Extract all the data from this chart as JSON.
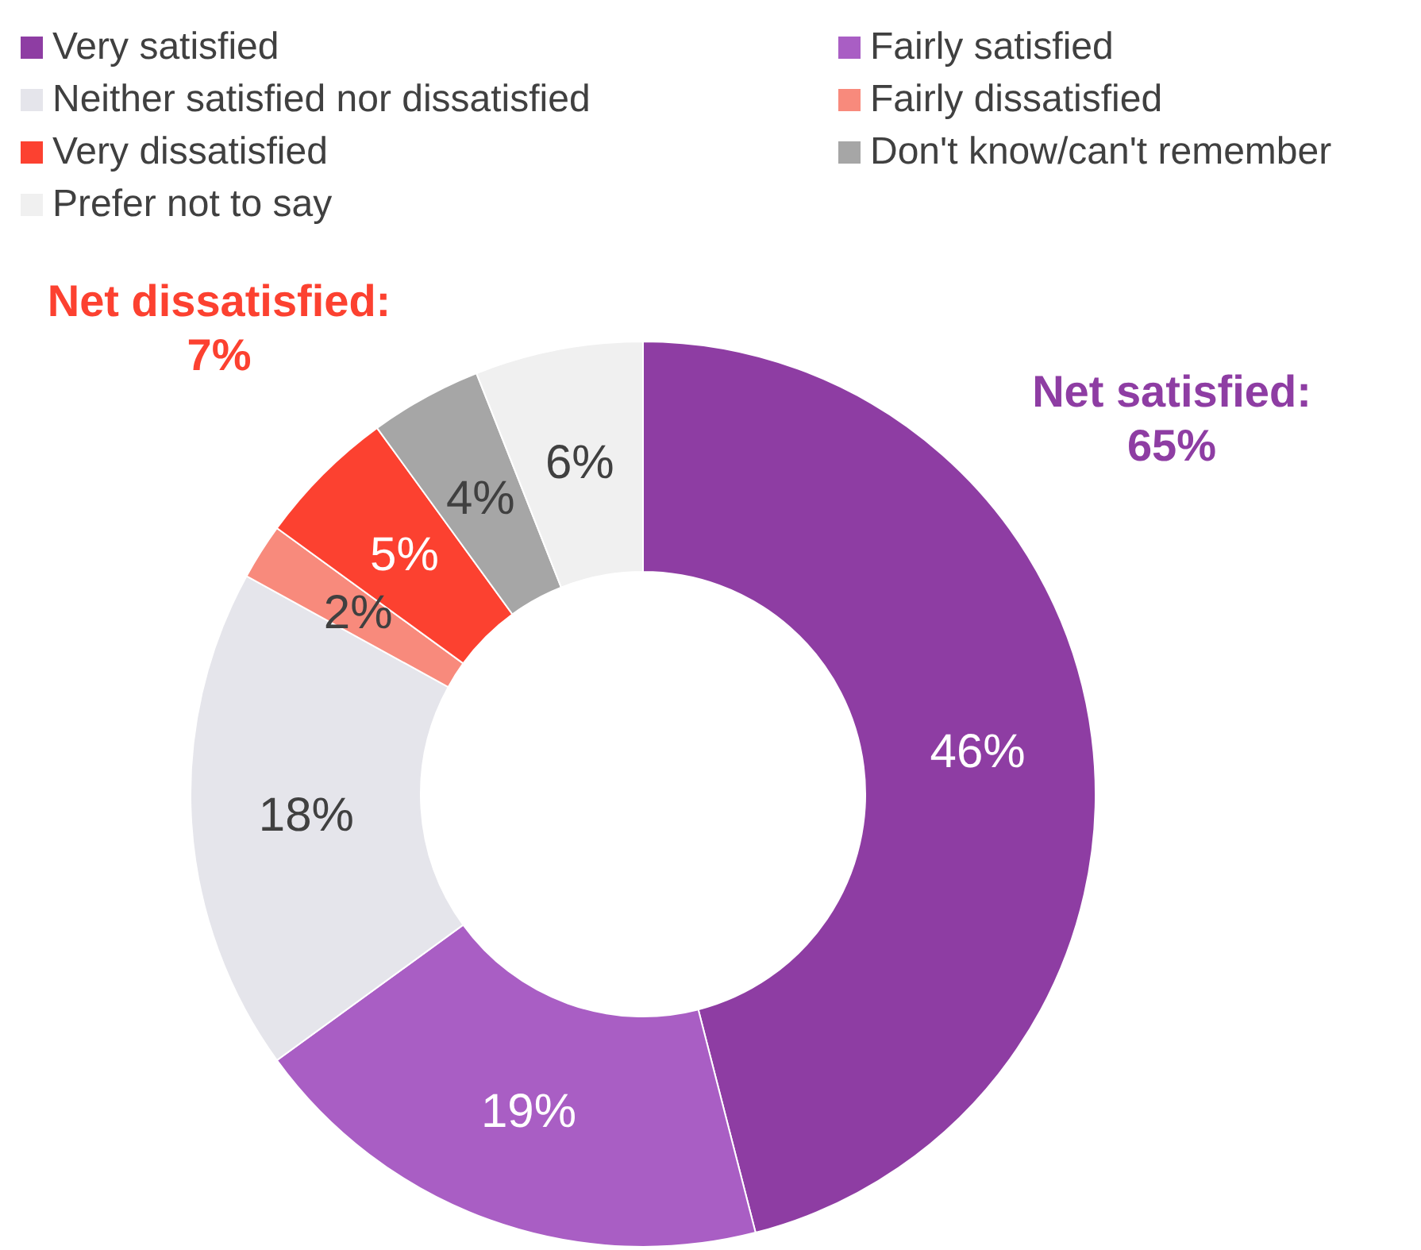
{
  "chart_data": {
    "type": "donut",
    "categories": [
      "Very satisfied",
      "Fairly satisfied",
      "Neither satisfied nor dissatisfied",
      "Fairly dissatisfied",
      "Very dissatisfied",
      "Don't know/can't remember",
      "Prefer not to say"
    ],
    "values": [
      46,
      19,
      18,
      2,
      5,
      4,
      6
    ],
    "colors": [
      "#8e3da3",
      "#a95ec4",
      "#e5e5eb",
      "#f88a7c",
      "#fc4130",
      "#a6a6a6",
      "#f0f0f0"
    ],
    "value_labels": [
      "46%",
      "19%",
      "18%",
      "2%",
      "5%",
      "4%",
      "6%"
    ],
    "legend": "top",
    "annotations": [
      "Net satisfied: 65%",
      "Net dissatisfied: 7%"
    ]
  }
}
